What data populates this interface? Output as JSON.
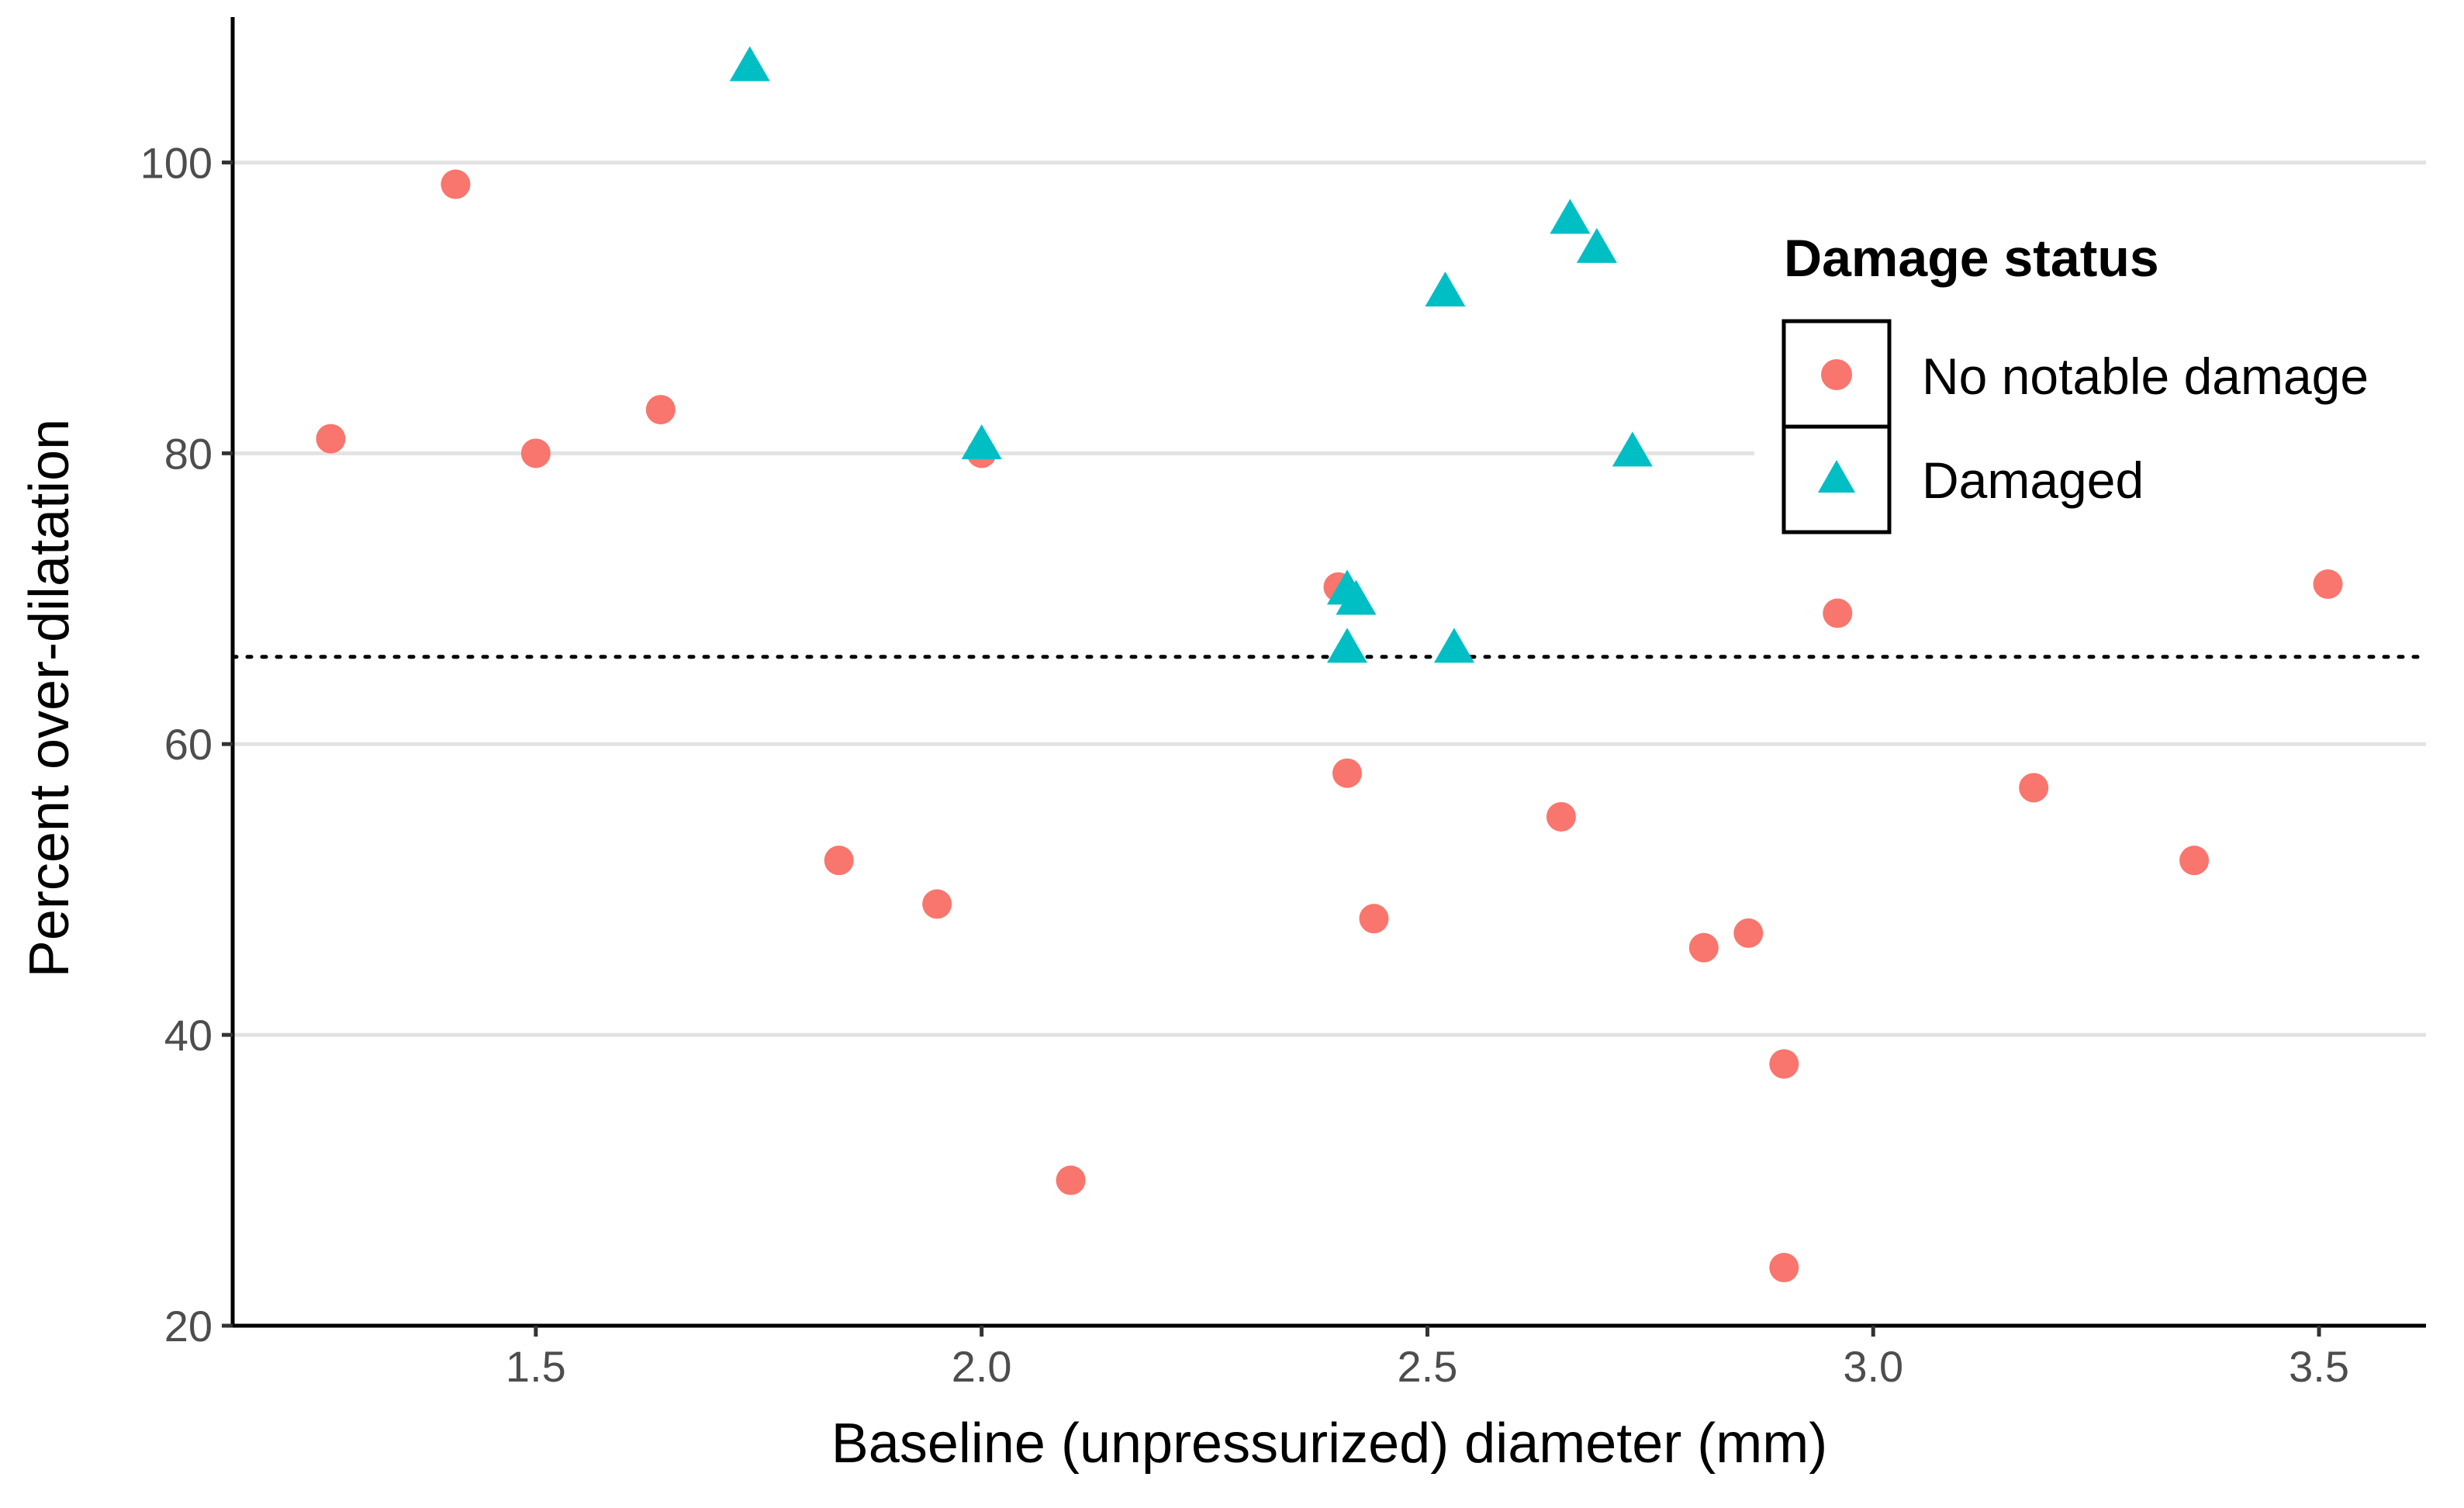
{
  "chart_data": {
    "type": "scatter",
    "title": "",
    "xlabel": "Baseline (unpressurized) diameter (mm)",
    "ylabel": "Percent over-dilatation",
    "xlim": [
      1.16,
      3.62
    ],
    "ylim": [
      20,
      110
    ],
    "x_ticks": [
      1.5,
      2.0,
      2.5,
      3.0,
      3.5
    ],
    "x_tick_labels": [
      "1.5",
      "2.0",
      "2.5",
      "3.0",
      "3.5"
    ],
    "y_ticks": [
      20,
      40,
      60,
      80,
      100
    ],
    "y_tick_labels": [
      "20",
      "40",
      "60",
      "80",
      "100"
    ],
    "grid": "horizontal major",
    "reference_line": {
      "y": 66,
      "style": "dotted"
    },
    "legend": {
      "title": "Damage status",
      "position": "right",
      "entries": [
        "No notable damage",
        "Damaged"
      ]
    },
    "series": [
      {
        "name": "No notable damage",
        "marker": "circle",
        "color": "#F8766D",
        "points": [
          {
            "x": 1.27,
            "y": 81
          },
          {
            "x": 1.41,
            "y": 98.5
          },
          {
            "x": 1.5,
            "y": 80
          },
          {
            "x": 1.64,
            "y": 83
          },
          {
            "x": 1.84,
            "y": 52
          },
          {
            "x": 1.95,
            "y": 49
          },
          {
            "x": 2.0,
            "y": 80
          },
          {
            "x": 2.1,
            "y": 30
          },
          {
            "x": 2.4,
            "y": 70.8
          },
          {
            "x": 2.41,
            "y": 58
          },
          {
            "x": 2.44,
            "y": 48
          },
          {
            "x": 2.65,
            "y": 55
          },
          {
            "x": 2.81,
            "y": 46
          },
          {
            "x": 2.86,
            "y": 47
          },
          {
            "x": 2.9,
            "y": 38
          },
          {
            "x": 2.9,
            "y": 24
          },
          {
            "x": 2.96,
            "y": 69
          },
          {
            "x": 3.18,
            "y": 57
          },
          {
            "x": 3.36,
            "y": 52
          },
          {
            "x": 3.51,
            "y": 71
          }
        ]
      },
      {
        "name": "Damaged",
        "marker": "triangle",
        "color": "#00BFC4",
        "points": [
          {
            "x": 1.74,
            "y": 106.5
          },
          {
            "x": 2.0,
            "y": 80.5
          },
          {
            "x": 2.41,
            "y": 70.5
          },
          {
            "x": 2.42,
            "y": 69.8
          },
          {
            "x": 2.41,
            "y": 66.5
          },
          {
            "x": 2.52,
            "y": 91
          },
          {
            "x": 2.53,
            "y": 66.5
          },
          {
            "x": 2.66,
            "y": 96
          },
          {
            "x": 2.69,
            "y": 94
          },
          {
            "x": 2.73,
            "y": 80
          }
        ]
      }
    ]
  }
}
